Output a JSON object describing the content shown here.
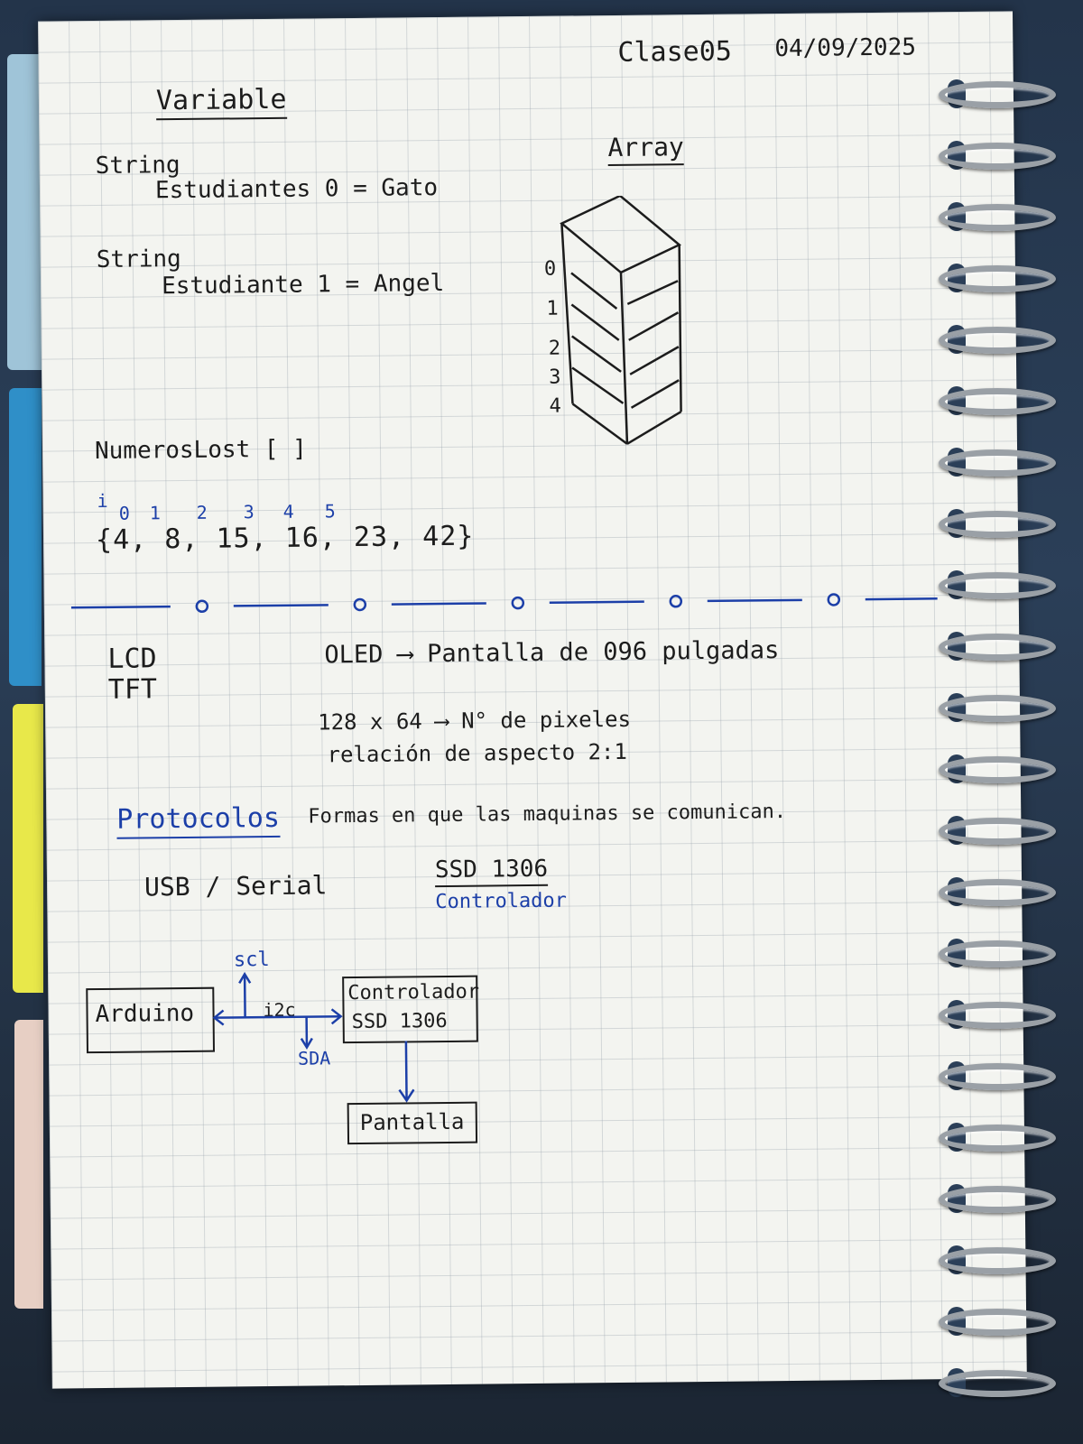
{
  "header": {
    "class_label": "Clase05",
    "date": "04/09/2025"
  },
  "variable": {
    "title": "Variable",
    "line1_type": "String",
    "line1_decl": "Estudiantes  0  = Gato",
    "line2_type": "String",
    "line2_decl": "Estudiante  1  = Angel"
  },
  "array": {
    "title": "Array",
    "indices": [
      "0",
      "1",
      "2",
      "3",
      "4"
    ]
  },
  "list": {
    "name": "NumerosLost [ ]",
    "index_label": "i",
    "indices": [
      "0",
      "1",
      "2",
      "3",
      "4",
      "5"
    ],
    "values_text": "{4, 8, 15, 16, 23, 42}"
  },
  "display": {
    "lcd": "LCD",
    "tft": "TFT",
    "oled_line": "OLED ⟶ Pantalla de 096 pulgadas",
    "pixels_line": "128 x 64 ⟶ N° de pixeles",
    "aspect_line": "relación de aspecto   2:1"
  },
  "protocols": {
    "title": "Protocolos",
    "definition": "Formas en que las maquinas se comunican.",
    "usb": "USB / Serial",
    "ssd_title": "SSD 1306",
    "ssd_sub": "Controlador"
  },
  "diagram": {
    "arduino": "Arduino",
    "controller_line1": "Controlador",
    "controller_line2": "SSD 1306",
    "screen": "Pantalla",
    "scl": "scl",
    "i2c": "i2c",
    "sda": "SDA"
  },
  "colors": {
    "ink": "#1c1c1c",
    "blue_ink": "#1c3fa8",
    "paper": "#f3f4f0",
    "binder_ring": "#9aa0a6"
  }
}
